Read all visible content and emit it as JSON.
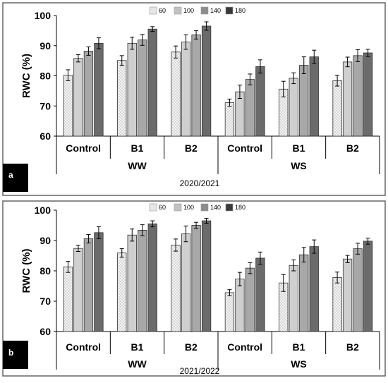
{
  "chart_data": [
    {
      "type": "bar",
      "panel_label": "a",
      "title": "2020/2021",
      "ylabel": "RWC (%)",
      "ylim": [
        60,
        100
      ],
      "yticks": [
        60,
        70,
        80,
        90,
        100
      ],
      "legend": [
        "60",
        "100",
        "140",
        "180"
      ],
      "legend_position": "top-center",
      "categories": [
        "Control",
        "B1",
        "B2",
        "Control",
        "B1",
        "B2"
      ],
      "groups": [
        {
          "label": "WW",
          "span": [
            0,
            2
          ]
        },
        {
          "label": "WS",
          "span": [
            3,
            5
          ]
        }
      ],
      "series": [
        {
          "name": "60",
          "values": [
            80.2,
            85.1,
            87.9,
            71.1,
            75.6,
            78.4
          ],
          "errors": [
            1.8,
            1.6,
            2.0,
            1.2,
            2.6,
            1.8
          ]
        },
        {
          "name": "100",
          "values": [
            85.8,
            90.8,
            91.2,
            74.7,
            79.2,
            84.6
          ],
          "errors": [
            1.2,
            2.0,
            2.4,
            2.2,
            1.8,
            1.6
          ]
        },
        {
          "name": "140",
          "values": [
            88.2,
            91.9,
            93.6,
            78.8,
            83.5,
            86.7
          ],
          "errors": [
            1.4,
            1.8,
            1.4,
            1.8,
            2.8,
            2.0
          ]
        },
        {
          "name": "180",
          "values": [
            90.8,
            95.5,
            96.5,
            83.1,
            86.3,
            87.6
          ],
          "errors": [
            1.8,
            0.8,
            1.4,
            2.2,
            2.2,
            1.2
          ]
        }
      ]
    },
    {
      "type": "bar",
      "panel_label": "b",
      "title": "2021/2022",
      "ylabel": "RWC (%)",
      "ylim": [
        60,
        100
      ],
      "yticks": [
        60,
        70,
        80,
        90,
        100
      ],
      "legend": [
        "60",
        "100",
        "140",
        "180"
      ],
      "legend_position": "top-center",
      "categories": [
        "Control",
        "B1",
        "B2",
        "Control",
        "B1",
        "B2"
      ],
      "groups": [
        {
          "label": "WW",
          "span": [
            0,
            2
          ]
        },
        {
          "label": "WS",
          "span": [
            3,
            5
          ]
        }
      ],
      "series": [
        {
          "name": "60",
          "values": [
            81.3,
            85.9,
            88.5,
            72.8,
            76.0,
            77.8
          ],
          "errors": [
            1.8,
            1.4,
            2.0,
            1.0,
            2.8,
            1.8
          ]
        },
        {
          "name": "100",
          "values": [
            87.4,
            91.8,
            92.2,
            77.3,
            81.8,
            83.9
          ],
          "errors": [
            1.0,
            2.0,
            2.6,
            2.2,
            1.8,
            1.2
          ]
        },
        {
          "name": "140",
          "values": [
            90.6,
            93.4,
            95.0,
            80.9,
            85.3,
            87.3
          ],
          "errors": [
            1.4,
            1.8,
            1.0,
            1.8,
            2.4,
            1.8
          ]
        },
        {
          "name": "180",
          "values": [
            92.6,
            95.5,
            96.5,
            84.2,
            88.0,
            89.8
          ],
          "errors": [
            2.0,
            1.0,
            0.8,
            2.0,
            2.2,
            1.0
          ]
        }
      ]
    }
  ],
  "colors": {
    "series": [
      "#f2f2f2",
      "#cfcfcf",
      "#a8a8a8",
      "#6b6b6b"
    ],
    "legend": [
      "#e6e6e6",
      "#c2c2c2",
      "#8c8c8c",
      "#3a3a3a"
    ],
    "frame": "#666666",
    "axis": "#000000",
    "badge": "#000000"
  }
}
